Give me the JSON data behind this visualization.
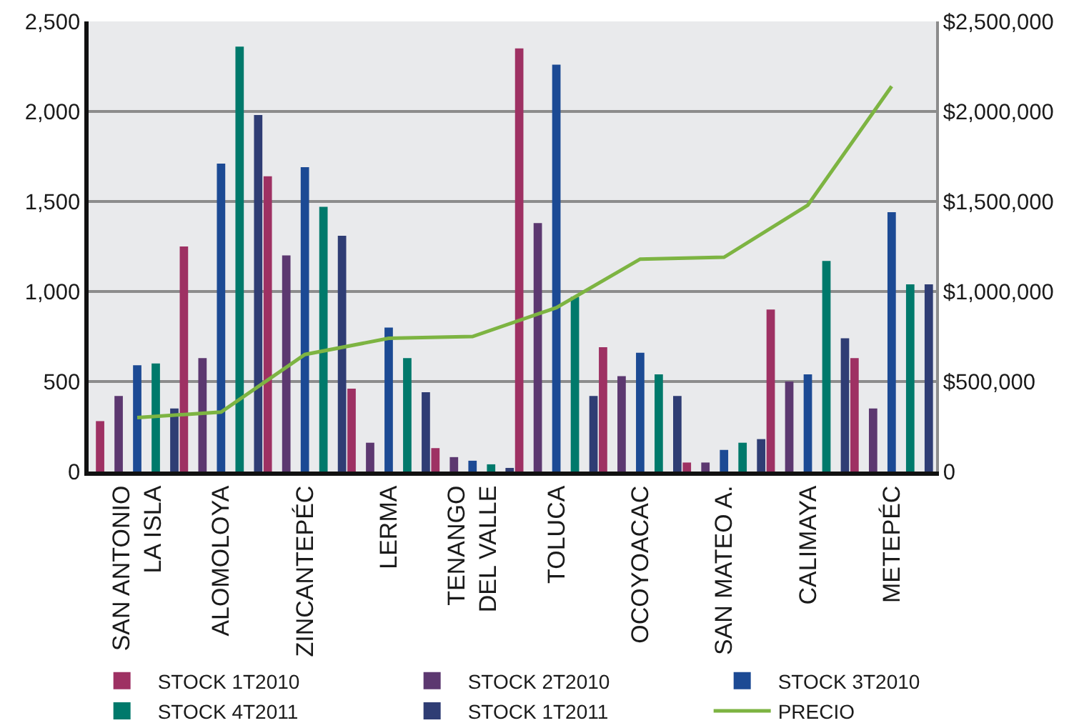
{
  "chart_data": {
    "type": "bar",
    "categories": [
      "SAN ANTONIO\nLA ISLA",
      "ALOMOLOYA",
      "ZINCANTEPÉC",
      "LERMA",
      "TENANGO\nDEL VALLE",
      "TOLUCA",
      "OCOYOACAC",
      "SAN MATEO A.",
      "CALIMAYA",
      "METEPÉC"
    ],
    "series": [
      {
        "name": "STOCK 1T2010",
        "color": "#9e3163",
        "values": [
          280,
          1250,
          1640,
          460,
          130,
          2350,
          690,
          50,
          900,
          630
        ]
      },
      {
        "name": "STOCK 2T2010",
        "color": "#5c3870",
        "values": [
          420,
          630,
          1200,
          160,
          80,
          1380,
          530,
          50,
          500,
          350
        ]
      },
      {
        "name": "STOCK 3T2010",
        "color": "#1c4a94",
        "values": [
          590,
          1710,
          1690,
          800,
          60,
          2260,
          660,
          120,
          540,
          1440
        ]
      },
      {
        "name": "STOCK 4T2011",
        "color": "#00796b",
        "values": [
          600,
          2360,
          1470,
          630,
          40,
          970,
          540,
          160,
          1170,
          1040
        ]
      },
      {
        "name": "STOCK 1T2011",
        "color": "#2f3d74",
        "values": [
          350,
          1980,
          1310,
          440,
          20,
          420,
          420,
          180,
          740,
          1040
        ]
      },
      {
        "name": "PRECIO",
        "type": "line",
        "axis": "y2",
        "color": "#7db442",
        "values": [
          300000,
          330000,
          650000,
          740000,
          750000,
          910000,
          1180000,
          1190000,
          1480000,
          2140000
        ]
      }
    ],
    "ylim": [
      0,
      2500
    ],
    "yticks": [
      0,
      500,
      {
        "value": 1000,
        "label": "1,000"
      },
      {
        "value": 1500,
        "label": "1,500"
      },
      {
        "value": 2000,
        "label": "2,000"
      },
      {
        "value": 2500,
        "label": "2,500"
      }
    ],
    "y2lim": [
      0,
      2500000
    ],
    "y2ticks": [
      0,
      {
        "value": 500000,
        "label": "$500,000"
      },
      {
        "value": 1000000,
        "label": "$1,000,000"
      },
      {
        "value": 1500000,
        "label": "$1,500,000"
      },
      {
        "value": 2000000,
        "label": "$2,000,000"
      },
      {
        "value": 2500000,
        "label": "$2,500,000"
      }
    ],
    "grid": "y",
    "legend": "bottom",
    "marker": "none"
  }
}
